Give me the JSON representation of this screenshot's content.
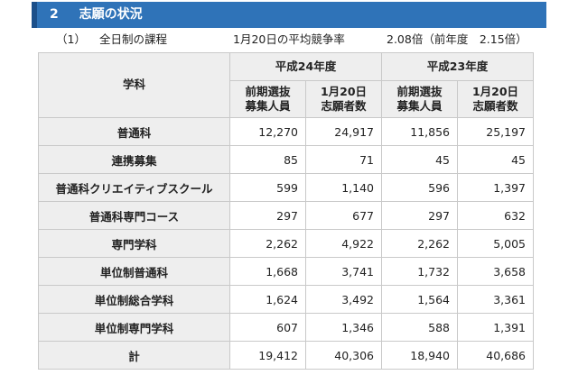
{
  "section": {
    "number": "2",
    "title": "志願の状況"
  },
  "subline": {
    "index": "（1）",
    "course": "全日制の課程",
    "label": "1月20日の平均競争率",
    "value": "2.08倍（前年度　2.15倍）"
  },
  "table": {
    "header_subject": "学科",
    "year_groups": [
      "平成24年度",
      "平成23年度"
    ],
    "sub_headers": [
      [
        "前期選抜",
        "募集人員"
      ],
      [
        "1月20日",
        "志願者数"
      ],
      [
        "前期選抜",
        "募集人員"
      ],
      [
        "1月20日",
        "志願者数"
      ]
    ],
    "rows": [
      {
        "label": "普通科",
        "values": [
          "12,270",
          "24,917",
          "11,856",
          "25,197"
        ]
      },
      {
        "label": "連携募集",
        "values": [
          "85",
          "71",
          "45",
          "45"
        ]
      },
      {
        "label": "普通科クリエイティブスクール",
        "values": [
          "599",
          "1,140",
          "596",
          "1,397"
        ]
      },
      {
        "label": "普通科専門コース",
        "values": [
          "297",
          "677",
          "297",
          "632"
        ]
      },
      {
        "label": "専門学科",
        "values": [
          "2,262",
          "4,922",
          "2,262",
          "5,005"
        ]
      },
      {
        "label": "単位制普通科",
        "values": [
          "1,668",
          "3,741",
          "1,732",
          "3,658"
        ]
      },
      {
        "label": "単位制総合学科",
        "values": [
          "1,624",
          "3,492",
          "1,564",
          "3,361"
        ]
      },
      {
        "label": "単位制専門学科",
        "values": [
          "607",
          "1,346",
          "588",
          "1,391"
        ]
      },
      {
        "label": "計",
        "values": [
          "19,412",
          "40,306",
          "18,940",
          "40,686"
        ]
      }
    ]
  },
  "colors": {
    "section_bar": "#2f73b8",
    "header_bg": "#eeeeee"
  }
}
